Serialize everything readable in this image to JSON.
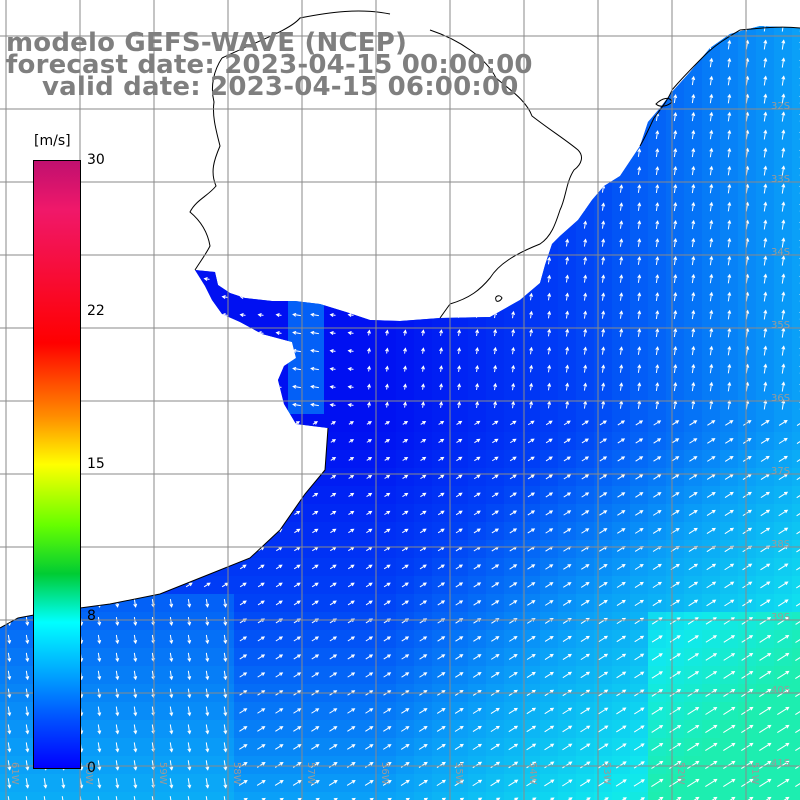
{
  "title": {
    "model": "modelo GEFS-WAVE (NCEP)",
    "forecast": "forecast date: 2023-04-15 00:00:00",
    "valid": "valid date: 2023-04-15 06:00:00"
  },
  "colorbar": {
    "unit": "[m/s]",
    "ticks": [
      "30",
      "22",
      "15",
      "8",
      "0"
    ],
    "colors": [
      "#c0106f",
      "#ff0000",
      "#ffff00",
      "#00cc33",
      "#00ffff",
      "#0000ff"
    ]
  },
  "grid": {
    "lat_labels": [
      "32S",
      "33S",
      "34S",
      "35S",
      "36S",
      "37S",
      "38S",
      "39S",
      "40S",
      "41S"
    ],
    "lon_labels": [
      "61W",
      "60W",
      "59W",
      "58W",
      "57W",
      "56W",
      "55W",
      "54W",
      "53W",
      "52W",
      "51W"
    ]
  },
  "colors": {
    "land": "#ffffff",
    "grid": "#8a8a8a",
    "coast": "#000000",
    "label": "#9a9a9a"
  }
}
